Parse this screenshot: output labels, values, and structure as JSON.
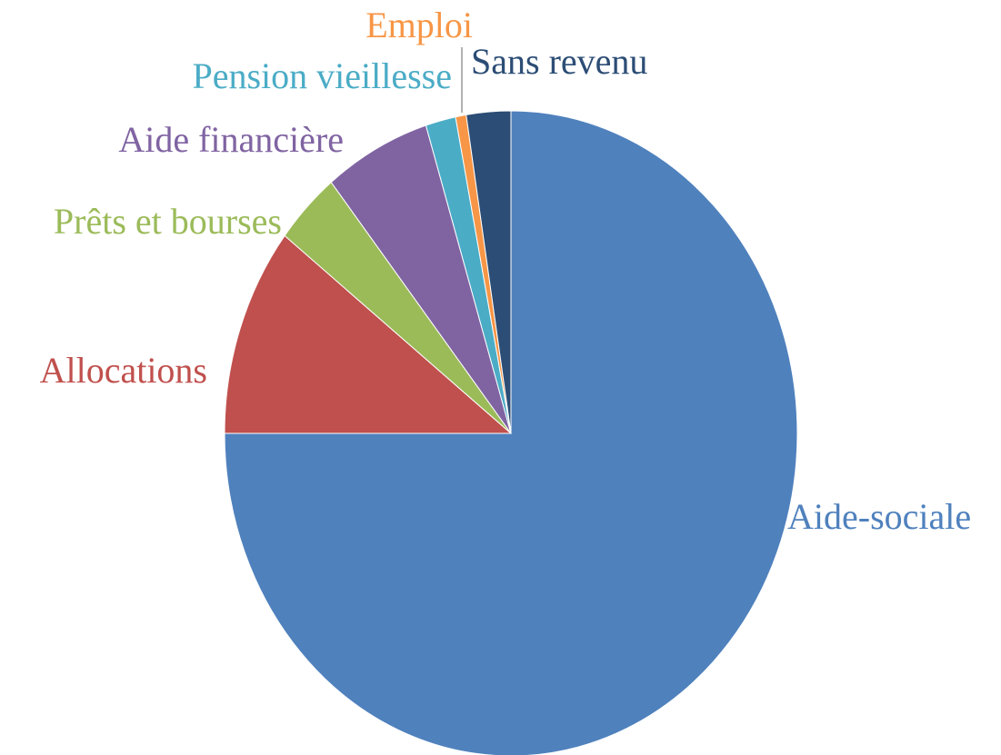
{
  "chart_data": {
    "type": "pie",
    "categories": [
      "Aide-sociale",
      "Allocations",
      "Prêts et bourses",
      "Aide financière",
      "Pension vieillesse",
      "Emploi",
      "Sans revenu"
    ],
    "values": [
      75,
      10.5,
      3.7,
      6,
      1.7,
      0.6,
      2.5
    ],
    "colors": [
      "#4f81bd",
      "#c0504d",
      "#9bbb59",
      "#8064a2",
      "#4bacc6",
      "#f79646",
      "#2c4d75"
    ]
  }
}
